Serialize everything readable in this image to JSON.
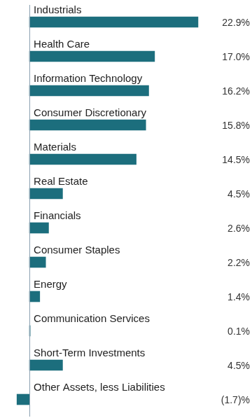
{
  "chart_data": {
    "type": "bar",
    "orientation": "horizontal",
    "categories": [
      "Industrials",
      "Health Care",
      "Information Technology",
      "Consumer Discretionary",
      "Materials",
      "Real Estate",
      "Financials",
      "Consumer Staples",
      "Energy",
      "Communication Services",
      "Short-Term Investments",
      "Other Assets, less Liabilities"
    ],
    "values": [
      22.9,
      17.0,
      16.2,
      15.8,
      14.5,
      4.5,
      2.6,
      2.2,
      1.4,
      0.1,
      4.5,
      -1.7
    ],
    "value_labels": [
      "22.9%",
      "17.0%",
      "16.2%",
      "15.8%",
      "14.5%",
      "4.5%",
      "2.6%",
      "2.2%",
      "1.4%",
      "0.1%",
      "4.5%",
      "(1.7)%"
    ],
    "color": "#1c6e7d",
    "xlim": [
      -4,
      25
    ],
    "grid": false,
    "data_labels": true,
    "tick_labels": false
  }
}
